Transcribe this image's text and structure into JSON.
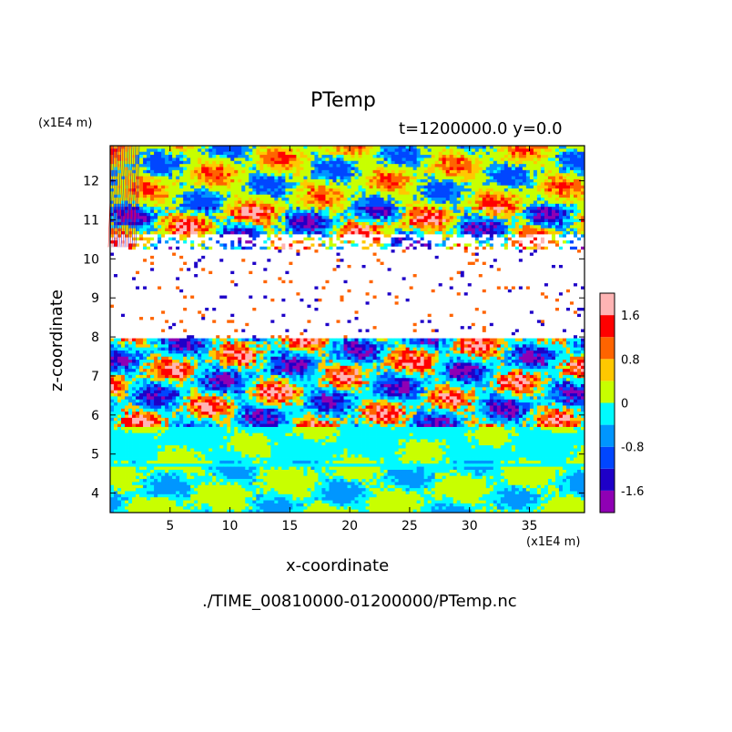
{
  "chart_data": {
    "type": "heatmap",
    "title": "PTemp",
    "subtitle": "t=1200000.0 y=0.0",
    "xlabel": "x-coordinate",
    "ylabel": "z-coordinate",
    "x_unit": "(x1E4 m)",
    "y_unit": "(x1E4 m)",
    "xlim": [
      0,
      39.6
    ],
    "ylim": [
      3.5,
      12.9
    ],
    "x_ticks": [
      5,
      10,
      15,
      20,
      25,
      30,
      35
    ],
    "y_ticks": [
      4,
      5,
      6,
      7,
      8,
      9,
      10,
      11,
      12
    ],
    "colorbar": {
      "levels": [
        -2.0,
        -1.6,
        -1.2,
        -0.8,
        -0.4,
        0,
        0.4,
        0.8,
        1.2,
        1.6,
        2.0
      ],
      "colors": [
        "#8f00b4",
        "#1e00c8",
        "#0046ff",
        "#0096ff",
        "#00faff",
        "#c8ff00",
        "#ffc800",
        "#ff6400",
        "#ff0000",
        "#ffb4b4"
      ],
      "tick_labels": [
        "1.6",
        "0.8",
        "0",
        "-0.8",
        "-1.6"
      ]
    },
    "layers": [
      {
        "z_range": [
          3.5,
          4.8
        ],
        "dominant": [
          "#c8ff00",
          "#00faff"
        ]
      },
      {
        "z_range": [
          4.8,
          5.7
        ],
        "dominant": [
          "#00faff",
          "#c8ff00"
        ]
      },
      {
        "z_range": [
          5.7,
          8.0
        ],
        "dominant": [
          "#00faff",
          "#0096ff",
          "#1e00c8",
          "#ff0000",
          "#c8ff00"
        ]
      },
      {
        "z_range": [
          8.0,
          10.2
        ],
        "dominant": [
          "#ffffff"
        ]
      },
      {
        "z_range": [
          10.2,
          11.3
        ],
        "dominant": [
          "#ff0000",
          "#1e00c8",
          "#ffc800"
        ]
      },
      {
        "z_range": [
          11.3,
          12.9
        ],
        "dominant": [
          "#c8ff00",
          "#00faff",
          "#0096ff",
          "#ffc800"
        ]
      }
    ],
    "footer": "./TIME_00810000-01200000/PTemp.nc"
  }
}
